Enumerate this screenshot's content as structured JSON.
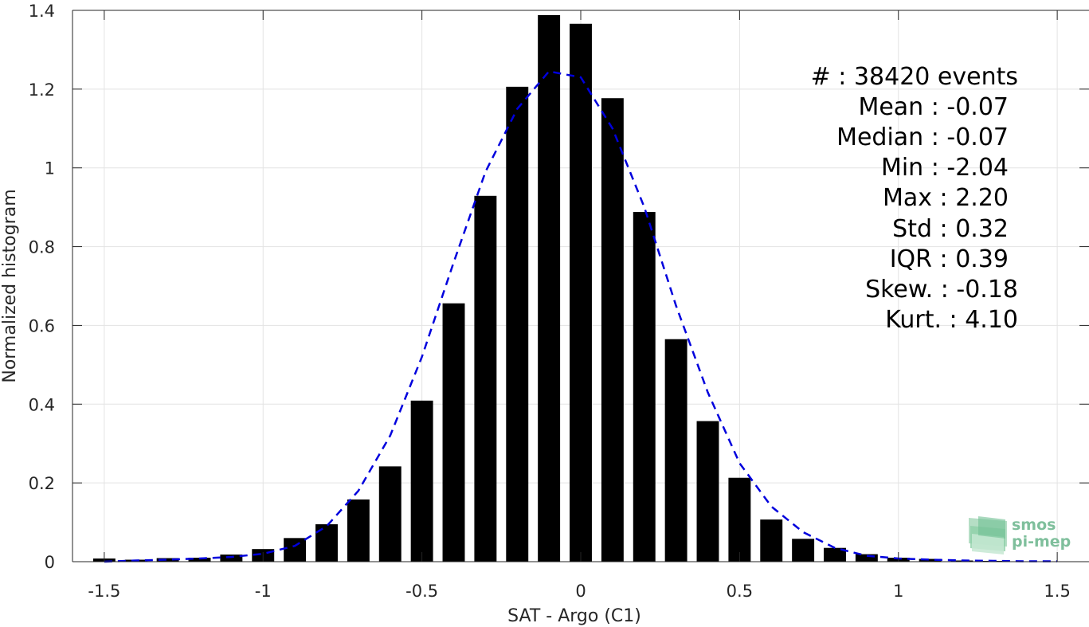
{
  "chart_data": {
    "type": "bar",
    "xlabel": "SAT - Argo (C1)",
    "ylabel": "Normalized histogram",
    "xlim": [
      -1.6,
      1.6
    ],
    "ylim": [
      0,
      1.4
    ],
    "xticks": [
      -1.5,
      -1,
      -0.5,
      0,
      0.5,
      1,
      1.5
    ],
    "xtick_labels": [
      "-1.5",
      "-1",
      "-0.5",
      "0",
      "0.5",
      "1",
      "1.5"
    ],
    "yticks": [
      0,
      0.2,
      0.4,
      0.6,
      0.8,
      1,
      1.2,
      1.4
    ],
    "ytick_labels": [
      "0",
      "0.2",
      "0.4",
      "0.6",
      "0.8",
      "1",
      "1.2",
      "1.4"
    ],
    "grid": true,
    "bar_color": "#000000",
    "bars": {
      "x": [
        -1.5,
        -1.4,
        -1.3,
        -1.2,
        -1.1,
        -1.0,
        -0.9,
        -0.8,
        -0.7,
        -0.6,
        -0.5,
        -0.4,
        -0.3,
        -0.2,
        -0.1,
        0.0,
        0.1,
        0.2,
        0.3,
        0.4,
        0.5,
        0.6,
        0.7,
        0.8,
        0.9,
        1.0,
        1.1,
        1.2,
        1.3,
        1.4,
        1.5
      ],
      "values": [
        0.008,
        0.005,
        0.009,
        0.01,
        0.018,
        0.032,
        0.06,
        0.095,
        0.158,
        0.242,
        0.409,
        0.656,
        0.929,
        1.206,
        1.388,
        1.366,
        1.177,
        0.888,
        0.565,
        0.357,
        0.213,
        0.107,
        0.058,
        0.035,
        0.019,
        0.01,
        0.007,
        0.003,
        0.002,
        0.001,
        0.001
      ]
    },
    "fit_curve": {
      "color": "#0000dd",
      "style": "dashed",
      "x": [
        -1.5,
        -1.4,
        -1.3,
        -1.2,
        -1.1,
        -1.0,
        -0.9,
        -0.8,
        -0.7,
        -0.6,
        -0.5,
        -0.4,
        -0.3,
        -0.2,
        -0.1,
        0.0,
        0.1,
        0.2,
        0.3,
        0.4,
        0.5,
        0.6,
        0.7,
        0.8,
        0.9,
        1.0,
        1.1,
        1.2,
        1.3,
        1.4,
        1.5
      ],
      "values": [
        0.0,
        0.003,
        0.005,
        0.008,
        0.012,
        0.02,
        0.04,
        0.09,
        0.18,
        0.32,
        0.52,
        0.76,
        0.99,
        1.15,
        1.245,
        1.23,
        1.1,
        0.9,
        0.65,
        0.43,
        0.25,
        0.14,
        0.075,
        0.035,
        0.015,
        0.008,
        0.005,
        0.003,
        0.002,
        0.001,
        0.001
      ]
    },
    "annotations": [
      "#  : 38420 events",
      "Mean : -0.07",
      "Median : -0.07",
      "Min : -2.04",
      "Max : 2.20",
      "Std : 0.32",
      "IQR : 0.39",
      "Skew. : -0.18",
      "Kurt. : 4.10"
    ]
  },
  "logo": {
    "line1": "smos",
    "line2": "pi-mep"
  }
}
